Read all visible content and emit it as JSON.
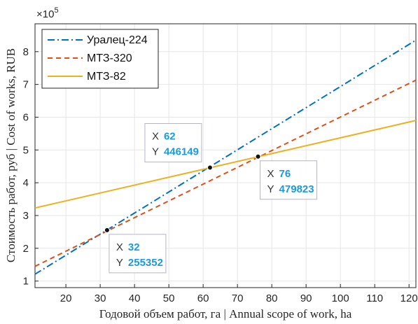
{
  "chart_data": {
    "type": "line",
    "xlabel": "Годовой объем работ, га | Annual scope of work, ha",
    "ylabel": "Стоимость работ, руб | Cost of works, RUB",
    "y_exponent_label": "×10",
    "y_exponent_power": "5",
    "xlim": [
      11,
      122
    ],
    "ylim": [
      0.8,
      8.85
    ],
    "x_ticks": [
      "20",
      "30",
      "40",
      "50",
      "60",
      "70",
      "80",
      "90",
      "100",
      "110",
      "120"
    ],
    "y_ticks": [
      "1",
      "2",
      "3",
      "4",
      "5",
      "6",
      "7",
      "8"
    ],
    "grid": true,
    "legend_position": "top-left",
    "series": [
      {
        "name": "Уралец-224",
        "color": "#0072bd",
        "style": "dashdot",
        "x": [
          11,
          122
        ],
        "y": [
          1.21,
          8.35
        ]
      },
      {
        "name": "МТЗ-320",
        "color": "#d95319",
        "style": "dashed",
        "x": [
          11,
          122
        ],
        "y": [
          1.45,
          7.13
        ]
      },
      {
        "name": "МТЗ-82",
        "color": "#edb120",
        "style": "solid",
        "x": [
          11,
          122
        ],
        "y": [
          3.23,
          5.9
        ]
      }
    ],
    "datatips": [
      {
        "x": 32,
        "y": 2.55352,
        "x_key": "X",
        "y_key": "Y",
        "x_value": "32",
        "y_value": "255352",
        "box": "below-right"
      },
      {
        "x": 62,
        "y": 4.46149,
        "x_key": "X",
        "y_key": "Y",
        "x_value": "62",
        "y_value": "446149",
        "box": "above-left"
      },
      {
        "x": 76,
        "y": 4.79823,
        "x_key": "X",
        "y_key": "Y",
        "x_value": "76",
        "y_value": "479823",
        "box": "below-right"
      }
    ]
  }
}
